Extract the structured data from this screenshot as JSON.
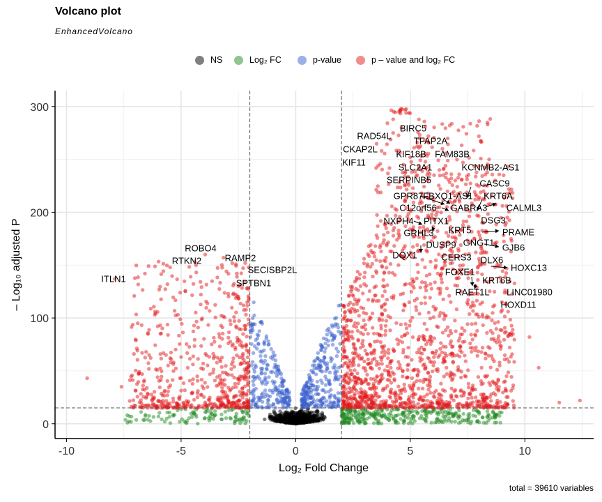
{
  "title": "Volcano plot",
  "subtitle": "EnhancedVolcano",
  "caption": "total = 39610 variables",
  "legend": [
    {
      "label": "NS",
      "color": "#808080"
    },
    {
      "label": "Log₂ FC",
      "color": "#228b22"
    },
    {
      "label": "p-value",
      "color": "#3a5fcd"
    },
    {
      "label": "p – value and log₂ FC",
      "color": "#e41a1c"
    }
  ],
  "chart_data": {
    "type": "scatter",
    "xlabel": "Log₂ Fold Change",
    "ylabel": "– Log₁₀ adjusted P",
    "xlim": [
      -10.5,
      13
    ],
    "ylim": [
      -14,
      315
    ],
    "x_ticks": [
      -10,
      -5,
      0,
      5,
      10
    ],
    "y_ticks": [
      0,
      100,
      200,
      300
    ],
    "fc_cutoff": 2,
    "p_cutoff_y": 15,
    "grid": true,
    "legend_position": "top",
    "colors": {
      "NS": "#000000",
      "FC": "#228b22",
      "P": "#3a5fcd",
      "FC_P": "#e41a1c"
    },
    "labeled_genes": [
      {
        "gene": "ITLN1",
        "x": -7.9,
        "y": 137
      },
      {
        "gene": "ROBO4",
        "x": -3.95,
        "y": 160
      },
      {
        "gene": "RTKN2",
        "x": -4.35,
        "y": 150
      },
      {
        "gene": "RAMP2",
        "x": -3.15,
        "y": 157
      },
      {
        "gene": "SECISBP2L",
        "x": -2.2,
        "y": 152
      },
      {
        "gene": "SPTBN1",
        "x": -2.5,
        "y": 130
      },
      {
        "gene": "BIRC5",
        "x": 4.6,
        "y": 298
      },
      {
        "gene": "RAD54L",
        "x": 4.25,
        "y": 275
      },
      {
        "gene": "TFAP2A",
        "x": 5.4,
        "y": 270
      },
      {
        "gene": "CKAP2L",
        "x": 3.75,
        "y": 258
      },
      {
        "gene": "KIF18B",
        "x": 4.55,
        "y": 256
      },
      {
        "gene": "FAM83B",
        "x": 6.4,
        "y": 260
      },
      {
        "gene": "KIF11",
        "x": 3.6,
        "y": 244
      },
      {
        "gene": "SLC2A1",
        "x": 4.7,
        "y": 245
      },
      {
        "gene": "KCNMB2-AS1",
        "x": 7.3,
        "y": 247
      },
      {
        "gene": "SERPINB5",
        "x": 5.75,
        "y": 230
      },
      {
        "gene": "CASC9",
        "x": 7.9,
        "y": 226
      },
      {
        "gene": "GPR87",
        "x": 5.5,
        "y": 218
      },
      {
        "gene": "FBXO1-AS1",
        "x": 6.95,
        "y": 211
      },
      {
        "gene": "KRT6A",
        "x": 8.3,
        "y": 217
      },
      {
        "gene": "C12orf56",
        "x": 6.6,
        "y": 205
      },
      {
        "gene": "GABRA3",
        "x": 7.6,
        "y": 201
      },
      {
        "gene": "CALML3",
        "x": 9.2,
        "y": 206
      },
      {
        "gene": "NXPH4",
        "x": 5.3,
        "y": 196
      },
      {
        "gene": "PITX1",
        "x": 6.05,
        "y": 193
      },
      {
        "gene": "DSG3",
        "x": 8.2,
        "y": 190
      },
      {
        "gene": "KRT5",
        "x": 7.3,
        "y": 188
      },
      {
        "gene": "GRHL3",
        "x": 5.75,
        "y": 184
      },
      {
        "gene": "PRAME",
        "x": 8.3,
        "y": 181
      },
      {
        "gene": "GNGT1",
        "x": 7.8,
        "y": 175
      },
      {
        "gene": "DUSP9",
        "x": 5.6,
        "y": 169
      },
      {
        "gene": "GJB6",
        "x": 8.7,
        "y": 170
      },
      {
        "gene": "DQX1",
        "x": 5.7,
        "y": 164
      },
      {
        "gene": "CERS3",
        "x": 6.9,
        "y": 158
      },
      {
        "gene": "DLX6",
        "x": 8.0,
        "y": 156
      },
      {
        "gene": "HOXC13",
        "x": 8.7,
        "y": 148
      },
      {
        "gene": "FOXE1",
        "x": 7.3,
        "y": 150
      },
      {
        "gene": "KRT6B",
        "x": 7.95,
        "y": 136
      },
      {
        "gene": "RAET1L",
        "x": 7.9,
        "y": 129
      },
      {
        "gene": "LINC01980",
        "x": 9.2,
        "y": 124
      },
      {
        "gene": "HOXD11",
        "x": 9.0,
        "y": 115
      }
    ]
  }
}
